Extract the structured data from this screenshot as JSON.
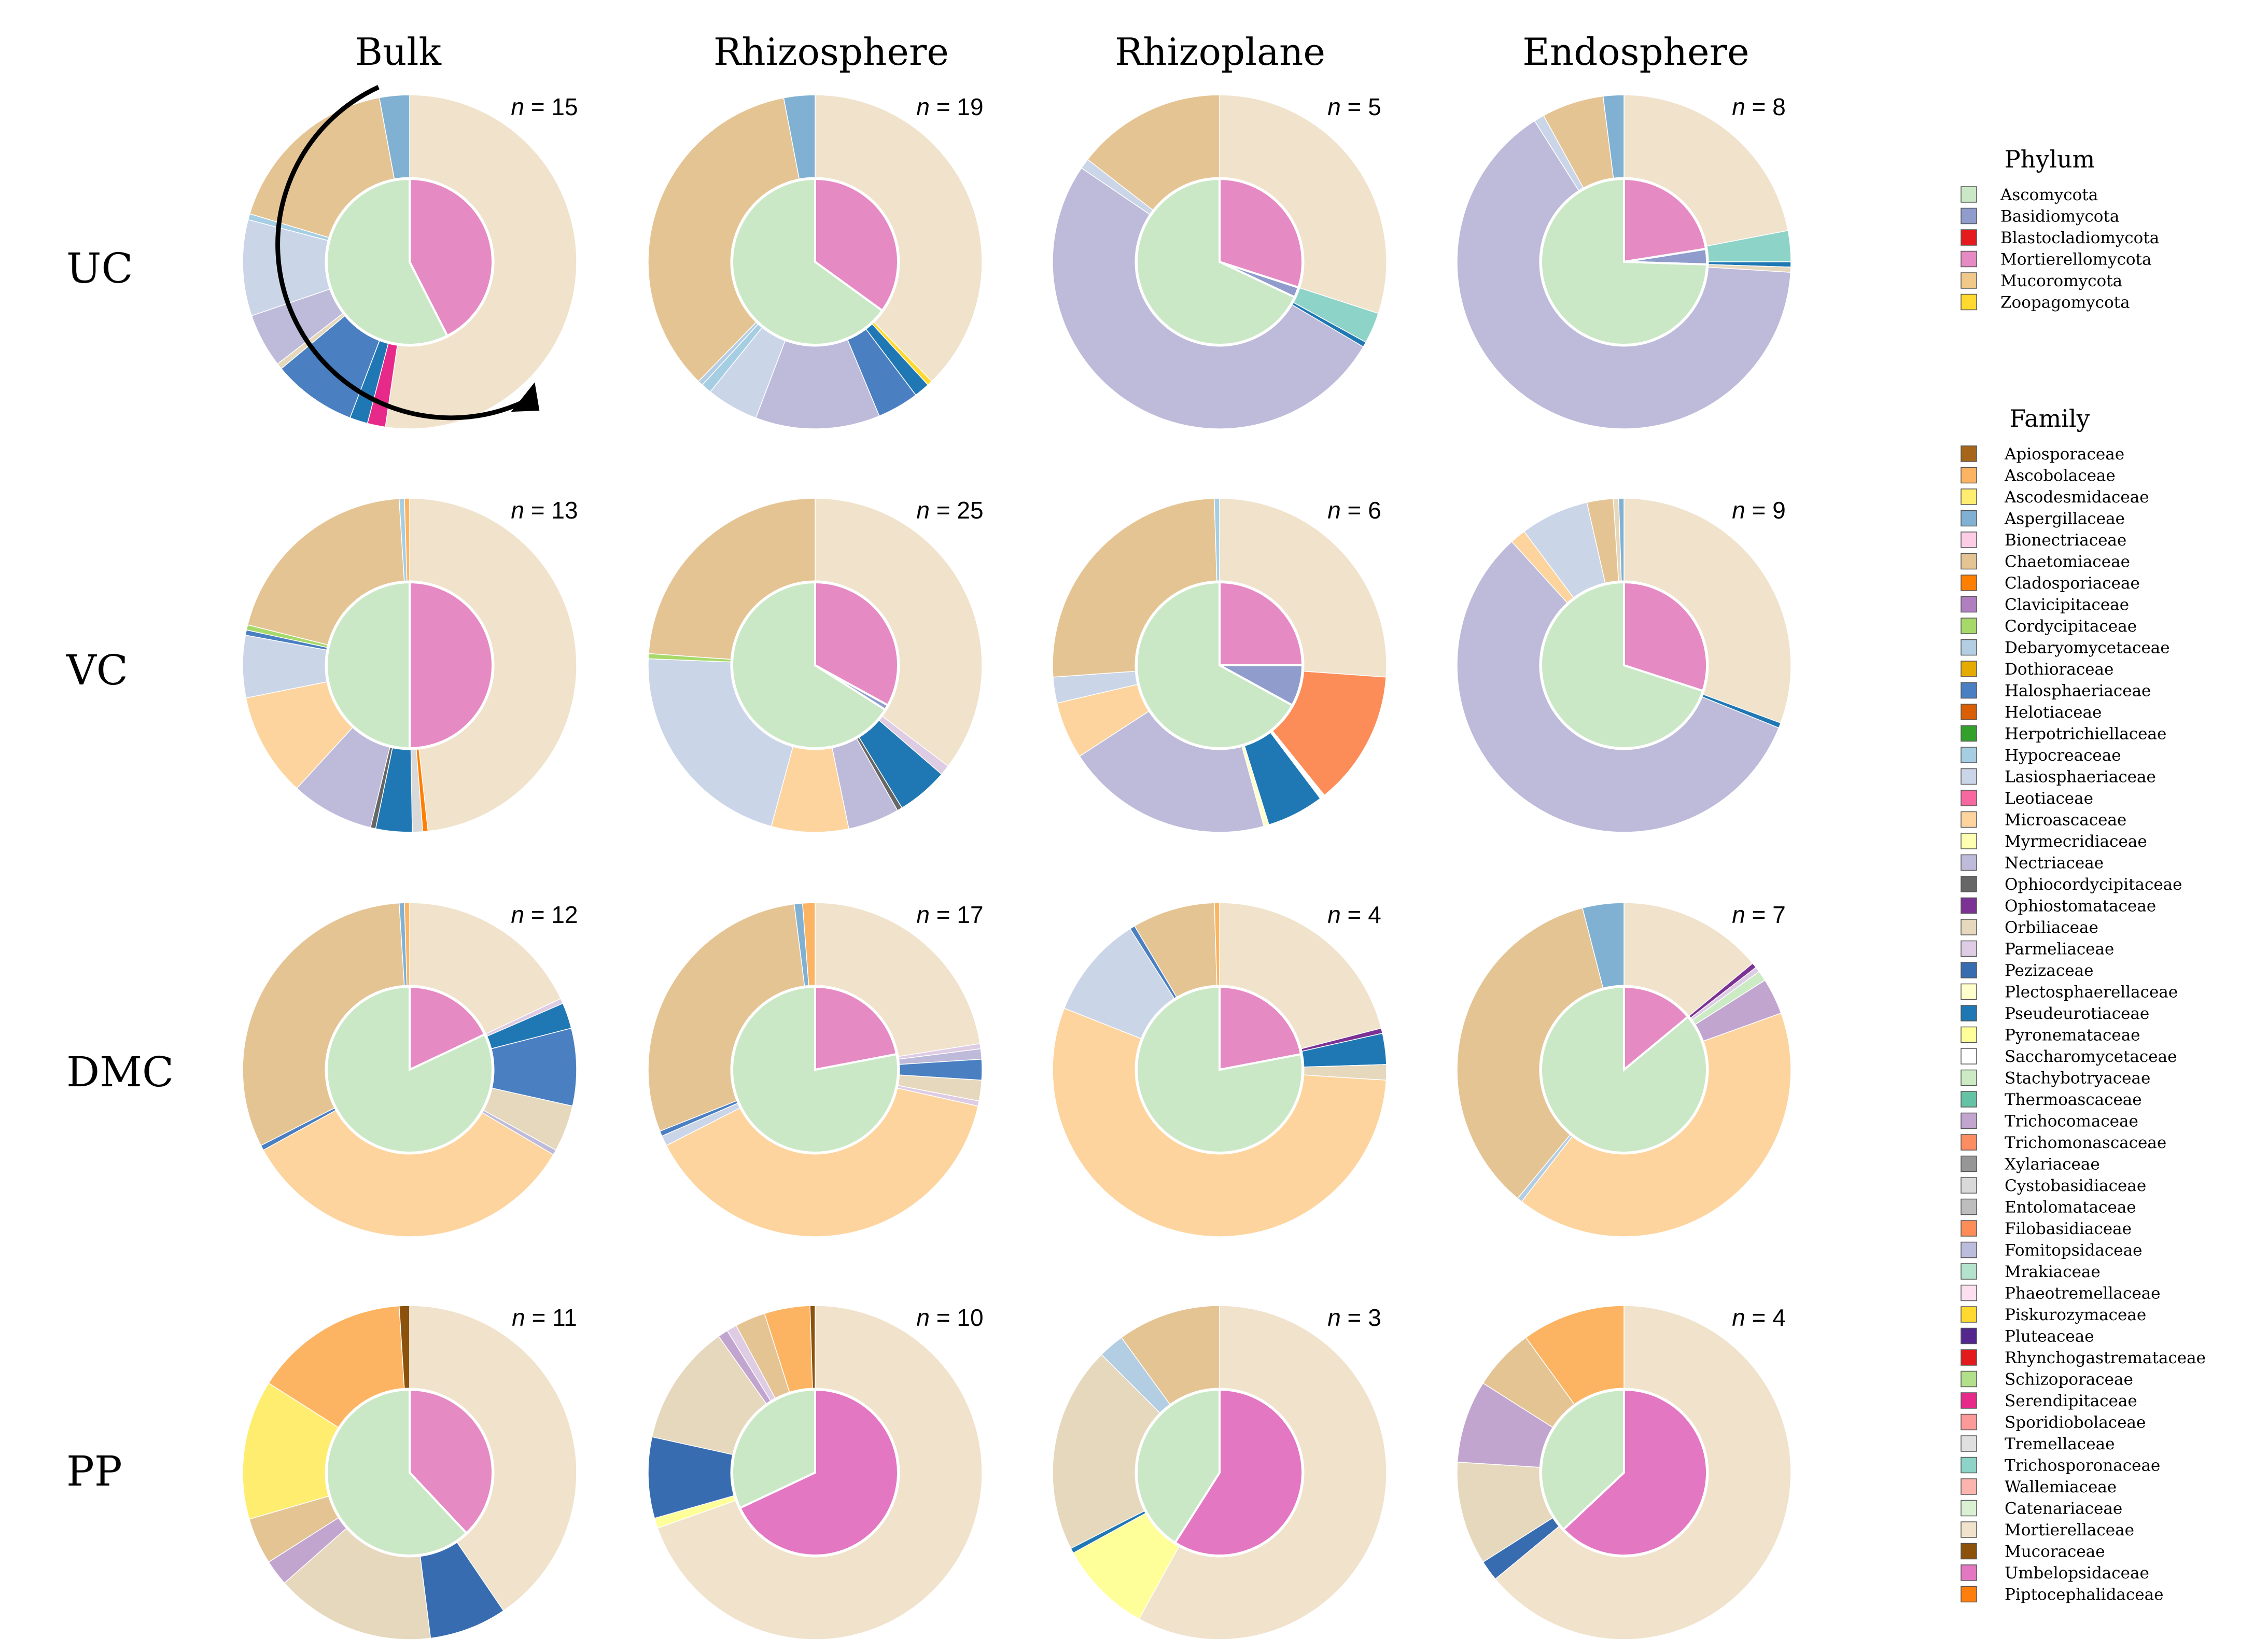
{
  "columns": [
    "Bulk",
    "Rhizosphere",
    "Rhizoplane",
    "Endosphere"
  ],
  "rows": [
    "UC",
    "VC",
    "DMC",
    "PP"
  ],
  "legend": {
    "phylum_title": "Phylum",
    "family_title": "Family",
    "phyla": [
      {
        "name": "Ascomycota",
        "color": "#cbe8c6"
      },
      {
        "name": "Basidiomycota",
        "color": "#8f9ccc"
      },
      {
        "name": "Blastocladiomycota",
        "color": "#e41a1c"
      },
      {
        "name": "Mortierellomycota",
        "color": "#e68ac3"
      },
      {
        "name": "Mucoromycota",
        "color": "#f0c88a"
      },
      {
        "name": "Zoopagomycota",
        "color": "#ffd92f"
      }
    ],
    "families": [
      {
        "name": "Apiosporaceae",
        "color": "#a6661a"
      },
      {
        "name": "Ascobolaceae",
        "color": "#fdb462"
      },
      {
        "name": "Ascodesmidaceae",
        "color": "#ffed6f"
      },
      {
        "name": "Aspergillaceae",
        "color": "#80b1d3"
      },
      {
        "name": "Bionectriaceae",
        "color": "#fccde5"
      },
      {
        "name": "Chaetomiaceae",
        "color": "#e5c494"
      },
      {
        "name": "Cladosporiaceae",
        "color": "#ff7f00"
      },
      {
        "name": "Clavicipitaceae",
        "color": "#b07fc0"
      },
      {
        "name": "Cordycipitaceae",
        "color": "#a6d96a"
      },
      {
        "name": "Debaryomycetaceae",
        "color": "#b3cde3"
      },
      {
        "name": "Dothioraceae",
        "color": "#e6ab02"
      },
      {
        "name": "Halosphaeriaceae",
        "color": "#4a7fc1"
      },
      {
        "name": "Helotiaceae",
        "color": "#d95f02"
      },
      {
        "name": "Herpotrichiellaceae",
        "color": "#33a02c"
      },
      {
        "name": "Hypocreaceae",
        "color": "#a6cee3"
      },
      {
        "name": "Lasiosphaeriaceae",
        "color": "#cbd5e8"
      },
      {
        "name": "Leotiaceae",
        "color": "#f768a1"
      },
      {
        "name": "Microascaceae",
        "color": "#fdd49e"
      },
      {
        "name": "Myrmecridiaceae",
        "color": "#ffffb3"
      },
      {
        "name": "Nectriaceae",
        "color": "#bebada"
      },
      {
        "name": "Ophiocordycipitaceae",
        "color": "#666666"
      },
      {
        "name": "Ophiostomataceae",
        "color": "#7b3294"
      },
      {
        "name": "Orbiliaceae",
        "color": "#e6d8bd"
      },
      {
        "name": "Parmeliaceae",
        "color": "#decbe4"
      },
      {
        "name": "Pezizaceae",
        "color": "#386cb0"
      },
      {
        "name": "Plectosphaerellaceae",
        "color": "#ffffcc"
      },
      {
        "name": "Pseudeurotiaceae",
        "color": "#1f78b4"
      },
      {
        "name": "Pyronemataceae",
        "color": "#ffff99"
      },
      {
        "name": "Saccharomycetaceae",
        "color": "#ffffff"
      },
      {
        "name": "Stachybotryaceae",
        "color": "#ccebc5"
      },
      {
        "name": "Thermoascaceae",
        "color": "#66c2a5"
      },
      {
        "name": "Trichocomaceae",
        "color": "#c2a5cf"
      },
      {
        "name": "Trichomonascaceae",
        "color": "#fc8d62"
      },
      {
        "name": "Xylariaceae",
        "color": "#969696"
      },
      {
        "name": "Cystobasidiaceae",
        "color": "#d9d9d9"
      },
      {
        "name": "Entolomataceae",
        "color": "#bdbdbd"
      },
      {
        "name": "Filobasidiaceae",
        "color": "#fc8d59"
      },
      {
        "name": "Fomitopsidaceae",
        "color": "#bcbddc"
      },
      {
        "name": "Mrakiaceae",
        "color": "#b3e2cd"
      },
      {
        "name": "Phaeotremellaceae",
        "color": "#fde0ef"
      },
      {
        "name": "Piskurozymaceae",
        "color": "#ffd92f"
      },
      {
        "name": "Pluteaceae",
        "color": "#54278f"
      },
      {
        "name": "Rhynchogastremataceae",
        "color": "#e31a1c"
      },
      {
        "name": "Schizoporaceae",
        "color": "#b2df8a"
      },
      {
        "name": "Serendipitaceae",
        "color": "#e7298a"
      },
      {
        "name": "Sporidiobolaceae",
        "color": "#fb9a99"
      },
      {
        "name": "Tremellaceae",
        "color": "#e0e0e0"
      },
      {
        "name": "Trichosporonaceae",
        "color": "#8dd3c7"
      },
      {
        "name": "Wallemiaceae",
        "color": "#fbb4ae"
      },
      {
        "name": "Catenariaceae",
        "color": "#d9f0d3"
      },
      {
        "name": "Mortierellaceae",
        "color": "#f0e2cb"
      },
      {
        "name": "Mucoraceae",
        "color": "#8c510a"
      },
      {
        "name": "Umbelopsidaceae",
        "color": "#e377c2"
      },
      {
        "name": "Piptocephalidaceae",
        "color": "#ff7f0e"
      }
    ]
  },
  "chart_data": [
    {
      "type": "pie",
      "subtype": "nested-donut",
      "row": "UC",
      "column": "Bulk",
      "n_label": "n = 15",
      "phylum": [
        [
          "Mortierellomycota",
          42.5
        ],
        [
          "Ascomycota",
          57.5
        ]
      ],
      "family": [
        [
          "Mortierellaceae",
          45
        ],
        [
          "Serendipitaceae",
          1.5
        ],
        [
          "Pseudeurotiaceae",
          1.5
        ],
        [
          "Halosphaeriaceae",
          7
        ],
        [
          "Orbiliaceae",
          0.5
        ],
        [
          "Nectriaceae",
          4.5
        ],
        [
          "Lasiosphaeriaceae",
          8
        ],
        [
          "Hypocreaceae",
          0.5
        ],
        [
          "Chaetomiaceae",
          15
        ],
        [
          "Aspergillaceae",
          2.5
        ]
      ]
    },
    {
      "type": "pie",
      "subtype": "nested-donut",
      "row": "UC",
      "column": "Rhizosphere",
      "n_label": "n = 19",
      "phylum": [
        [
          "Mortierellomycota",
          35
        ],
        [
          "Ascomycota",
          65
        ]
      ],
      "family": [
        [
          "Mortierellaceae",
          37.5
        ],
        [
          "Piskurozymaceae",
          0.5
        ],
        [
          "Pseudeurotiaceae",
          1.5
        ],
        [
          "Halosphaeriaceae",
          4
        ],
        [
          "Nectriaceae",
          12
        ],
        [
          "Lasiosphaeriaceae",
          5
        ],
        [
          "Hypocreaceae",
          1
        ],
        [
          "Debaryomycetaceae",
          0.5
        ],
        [
          "Chaetomiaceae",
          34.5
        ],
        [
          "Aspergillaceae",
          3
        ]
      ]
    },
    {
      "type": "pie",
      "subtype": "nested-donut",
      "row": "UC",
      "column": "Rhizoplane",
      "n_label": "n = 5",
      "phylum": [
        [
          "Mortierellomycota",
          30
        ],
        [
          "Basidiomycota",
          2
        ],
        [
          "Ascomycota",
          68
        ]
      ],
      "family": [
        [
          "Mortierellaceae",
          30
        ],
        [
          "Trichosporonaceae",
          3
        ],
        [
          "Pseudeurotiaceae",
          0.5
        ],
        [
          "Nectriaceae",
          51
        ],
        [
          "Lasiosphaeriaceae",
          1
        ],
        [
          "Chaetomiaceae",
          14.5
        ]
      ]
    },
    {
      "type": "pie",
      "subtype": "nested-donut",
      "row": "UC",
      "column": "Endosphere",
      "n_label": "n = 8",
      "phylum": [
        [
          "Mortierellomycota",
          22.5
        ],
        [
          "Basidiomycota",
          3
        ],
        [
          "Ascomycota",
          74.5
        ]
      ],
      "family": [
        [
          "Mortierellaceae",
          22
        ],
        [
          "Trichosporonaceae",
          3
        ],
        [
          "Pseudeurotiaceae",
          0.5
        ],
        [
          "Orbiliaceae",
          0.5
        ],
        [
          "Nectriaceae",
          65
        ],
        [
          "Lasiosphaeriaceae",
          1
        ],
        [
          "Chaetomiaceae",
          6
        ],
        [
          "Aspergillaceae",
          2
        ]
      ]
    },
    {
      "type": "pie",
      "subtype": "nested-donut",
      "row": "VC",
      "column": "Bulk",
      "n_label": "n = 13",
      "phylum": [
        [
          "Mortierellomycota",
          50
        ],
        [
          "Ascomycota",
          50
        ]
      ],
      "family": [
        [
          "Mortierellaceae",
          48
        ],
        [
          "Cladosporiaceae",
          0.5
        ],
        [
          "Cystobasidiaceae",
          1
        ],
        [
          "Pseudeurotiaceae",
          3.5
        ],
        [
          "Ophiocordycipitaceae",
          0.5
        ],
        [
          "Nectriaceae",
          8
        ],
        [
          "Microascaceae",
          10
        ],
        [
          "Lasiosphaeriaceae",
          6
        ],
        [
          "Halosphaeriaceae",
          0.5
        ],
        [
          "Cordycipitaceae",
          0.5
        ],
        [
          "Chaetomiaceae",
          20
        ],
        [
          "Hypocreaceae",
          0.5
        ],
        [
          "Ascobolaceae",
          0.5
        ]
      ]
    },
    {
      "type": "pie",
      "subtype": "nested-donut",
      "row": "VC",
      "column": "Rhizosphere",
      "n_label": "n = 25",
      "phylum": [
        [
          "Mortierellomycota",
          33
        ],
        [
          "Basidiomycota",
          1
        ],
        [
          "Ascomycota",
          66
        ]
      ],
      "family": [
        [
          "Mortierellaceae",
          35.5
        ],
        [
          "Parmeliaceae",
          1
        ],
        [
          "Pseudeurotiaceae",
          5
        ],
        [
          "Ophiocordycipitaceae",
          0.5
        ],
        [
          "Nectriaceae",
          5
        ],
        [
          "Microascaceae",
          7.5
        ],
        [
          "Lasiosphaeriaceae",
          21.5
        ],
        [
          "Cordycipitaceae",
          0.5
        ],
        [
          "Chaetomiaceae",
          24
        ]
      ]
    },
    {
      "type": "pie",
      "subtype": "nested-donut",
      "row": "VC",
      "column": "Rhizoplane",
      "n_label": "n = 6",
      "phylum": [
        [
          "Mortierellomycota",
          25
        ],
        [
          "Basidiomycota",
          8
        ],
        [
          "Ascomycota",
          67
        ]
      ],
      "family": [
        [
          "Mortierellaceae",
          26
        ],
        [
          "Filobasidiaceae",
          13
        ],
        [
          "Saccharomycetaceae",
          0.5
        ],
        [
          "Pseudeurotiaceae",
          5.5
        ],
        [
          "Plectosphaerellaceae",
          0.5
        ],
        [
          "Nectriaceae",
          20
        ],
        [
          "Microascaceae",
          5.5
        ],
        [
          "Lasiosphaeriaceae",
          2.5
        ],
        [
          "Chaetomiaceae",
          25.5
        ],
        [
          "Hypocreaceae",
          0.5
        ]
      ]
    },
    {
      "type": "pie",
      "subtype": "nested-donut",
      "row": "VC",
      "column": "Endosphere",
      "n_label": "n = 9",
      "phylum": [
        [
          "Mortierellomycota",
          30
        ],
        [
          "Ascomycota",
          70
        ]
      ],
      "family": [
        [
          "Mortierellaceae",
          30
        ],
        [
          "Pseudeurotiaceae",
          0.5
        ],
        [
          "Nectriaceae",
          56
        ],
        [
          "Microascaceae",
          1.5
        ],
        [
          "Lasiosphaeriaceae",
          6.5
        ],
        [
          "Chaetomiaceae",
          2.5
        ],
        [
          "Orbiliaceae",
          0.5
        ],
        [
          "Aspergillaceae",
          0.5
        ]
      ]
    },
    {
      "type": "pie",
      "subtype": "nested-donut",
      "row": "DMC",
      "column": "Bulk",
      "n_label": "n = 12",
      "phylum": [
        [
          "Mortierellomycota",
          18
        ],
        [
          "Ascomycota",
          82
        ]
      ],
      "family": [
        [
          "Mortierellaceae",
          18
        ],
        [
          "Parmeliaceae",
          0.5
        ],
        [
          "Pseudeurotiaceae",
          2.5
        ],
        [
          "Halosphaeriaceae",
          7.5
        ],
        [
          "Orbiliaceae",
          4.5
        ],
        [
          "Nectriaceae",
          0.5
        ],
        [
          "Microascaceae",
          33.5
        ],
        [
          "Halosphaeriaceae",
          0.5
        ],
        [
          "Chaetomiaceae",
          31.5
        ],
        [
          "Aspergillaceae",
          0.5
        ],
        [
          "Ascobolaceae",
          0.5
        ]
      ]
    },
    {
      "type": "pie",
      "subtype": "nested-donut",
      "row": "DMC",
      "column": "Rhizosphere",
      "n_label": "n = 17",
      "phylum": [
        [
          "Mortierellomycota",
          22
        ],
        [
          "Ascomycota",
          78
        ]
      ],
      "family": [
        [
          "Mortierellaceae",
          22.5
        ],
        [
          "Parmeliaceae",
          0.5
        ],
        [
          "Nectriaceae",
          1
        ],
        [
          "Halosphaeriaceae",
          2
        ],
        [
          "Orbiliaceae",
          2
        ],
        [
          "Parmeliaceae",
          0.5
        ],
        [
          "Microascaceae",
          39
        ],
        [
          "Lasiosphaeriaceae",
          1
        ],
        [
          "Halosphaeriaceae",
          0.5
        ],
        [
          "Chaetomiaceae",
          29
        ],
        [
          "Aspergillaceae",
          0.8
        ],
        [
          "Ascobolaceae",
          1.2
        ]
      ]
    },
    {
      "type": "pie",
      "subtype": "nested-donut",
      "row": "DMC",
      "column": "Rhizoplane",
      "n_label": "n = 4",
      "phylum": [
        [
          "Mortierellomycota",
          22
        ],
        [
          "Ascomycota",
          78
        ]
      ],
      "family": [
        [
          "Mortierellaceae",
          21
        ],
        [
          "Ophiostomataceae",
          0.5
        ],
        [
          "Pseudeurotiaceae",
          3
        ],
        [
          "Orbiliaceae",
          1.5
        ],
        [
          "Microascaceae",
          55
        ],
        [
          "Lasiosphaeriaceae",
          10
        ],
        [
          "Halosphaeriaceae",
          0.5
        ],
        [
          "Chaetomiaceae",
          8
        ],
        [
          "Ascobolaceae",
          0.5
        ]
      ]
    },
    {
      "type": "pie",
      "subtype": "nested-donut",
      "row": "DMC",
      "column": "Endosphere",
      "n_label": "n = 7",
      "phylum": [
        [
          "Mortierellomycota",
          14
        ],
        [
          "Ascomycota",
          86
        ]
      ],
      "family": [
        [
          "Mortierellaceae",
          14
        ],
        [
          "Ophiostomataceae",
          0.5
        ],
        [
          "Parmeliaceae",
          0.5
        ],
        [
          "Stachybotryaceae",
          1
        ],
        [
          "Trichocomaceae",
          3.5
        ],
        [
          "Microascaceae",
          41
        ],
        [
          "Debaryomycetaceae",
          0.5
        ],
        [
          "Chaetomiaceae",
          35
        ],
        [
          "Aspergillaceae",
          4
        ]
      ]
    },
    {
      "type": "pie",
      "subtype": "nested-donut",
      "row": "PP",
      "column": "Bulk",
      "n_label": "n = 11",
      "phylum": [
        [
          "Mortierellomycota",
          38
        ],
        [
          "Ascomycota",
          62
        ]
      ],
      "family": [
        [
          "Mortierellaceae",
          40.5
        ],
        [
          "Pezizaceae",
          7.5
        ],
        [
          "Orbiliaceae",
          15.5
        ],
        [
          "Trichocomaceae",
          2.5
        ],
        [
          "Chaetomiaceae",
          4.5
        ],
        [
          "Ascodesmidaceae",
          13.5
        ],
        [
          "Ascobolaceae",
          15
        ],
        [
          "Mucoraceae",
          1
        ]
      ]
    },
    {
      "type": "pie",
      "subtype": "nested-donut",
      "row": "PP",
      "column": "Rhizosphere",
      "n_label": "n = 10",
      "phylum": [
        [
          "Umbelopsidaceae",
          68
        ],
        [
          "Ascomycota",
          32
        ]
      ],
      "family": [
        [
          "Mortierellaceae",
          71
        ],
        [
          "Pyronemataceae",
          1
        ],
        [
          "Pezizaceae",
          8
        ],
        [
          "Orbiliaceae",
          12
        ],
        [
          "Trichocomaceae",
          1
        ],
        [
          "Parmeliaceae",
          1
        ],
        [
          "Chaetomiaceae",
          3
        ],
        [
          "Ascobolaceae",
          4.5
        ],
        [
          "Mucoraceae",
          0.5
        ]
      ]
    },
    {
      "type": "pie",
      "subtype": "nested-donut",
      "row": "PP",
      "column": "Rhizoplane",
      "n_label": "n = 3",
      "phylum": [
        [
          "Umbelopsidaceae",
          59
        ],
        [
          "Ascomycota",
          41
        ]
      ],
      "family": [
        [
          "Mortierellaceae",
          58
        ],
        [
          "Pyronemataceae",
          9
        ],
        [
          "Pseudeurotiaceae",
          0.5
        ],
        [
          "Orbiliaceae",
          20
        ],
        [
          "Debaryomycetaceae",
          2.5
        ],
        [
          "Chaetomiaceae",
          10
        ]
      ]
    },
    {
      "type": "pie",
      "subtype": "nested-donut",
      "row": "PP",
      "column": "Endosphere",
      "n_label": "n = 4",
      "phylum": [
        [
          "Umbelopsidaceae",
          63
        ],
        [
          "Ascomycota",
          37
        ]
      ],
      "family": [
        [
          "Mortierellaceae",
          64
        ],
        [
          "Pezizaceae",
          2
        ],
        [
          "Orbiliaceae",
          10
        ],
        [
          "Trichocomaceae",
          8
        ],
        [
          "Chaetomiaceae",
          6
        ],
        [
          "Ascobolaceae",
          10
        ]
      ]
    }
  ]
}
